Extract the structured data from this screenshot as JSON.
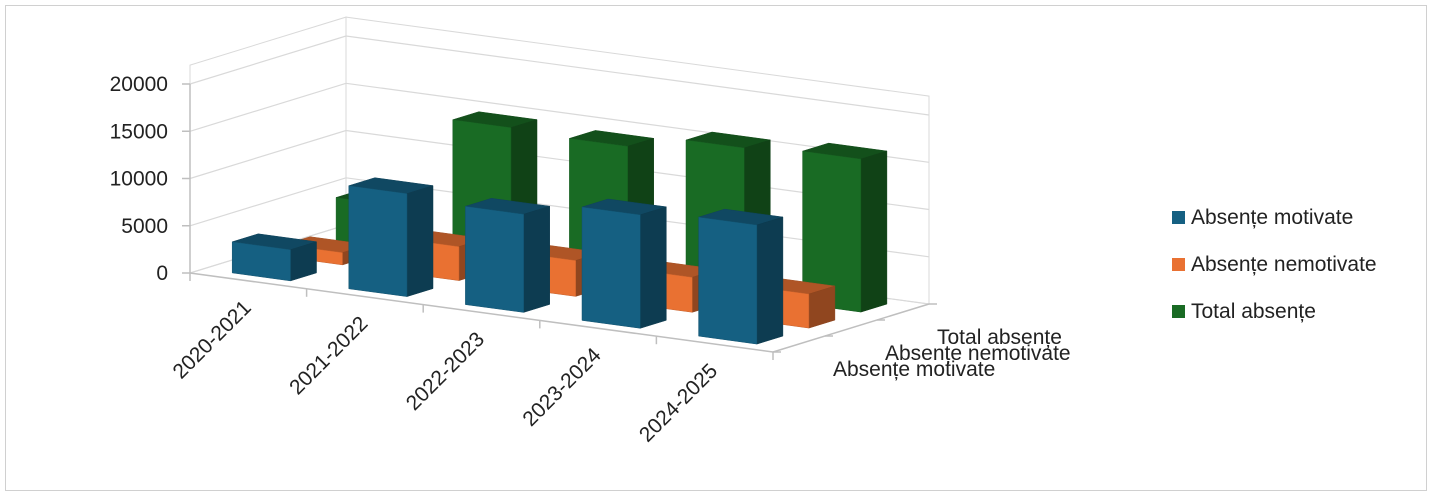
{
  "chart_data": {
    "type": "bar",
    "subtype": "3d-column",
    "title": "",
    "categories": [
      "2020-2021",
      "2021-2022",
      "2022-2023",
      "2023-2024",
      "2024-2025"
    ],
    "series": [
      {
        "name": "Absențe motivate",
        "color": "#156082",
        "values": [
          3300,
          10900,
          10400,
          12000,
          12600
        ]
      },
      {
        "name": "Absențe nemotivate",
        "color": "#e97132",
        "values": [
          1300,
          3600,
          3800,
          3700,
          3600
        ]
      },
      {
        "name": "Total absențe",
        "color": "#196b24",
        "values": [
          4600,
          14500,
          14200,
          15700,
          16200
        ]
      }
    ],
    "y_ticks": [
      "0",
      "5000",
      "10000",
      "15000",
      "20000"
    ],
    "ylim": [
      0,
      20000
    ],
    "depth_labels": [
      "Absențe motivate",
      "Absențe nemotivate",
      "Total absențe"
    ],
    "grid": true,
    "legend_position": "right"
  }
}
